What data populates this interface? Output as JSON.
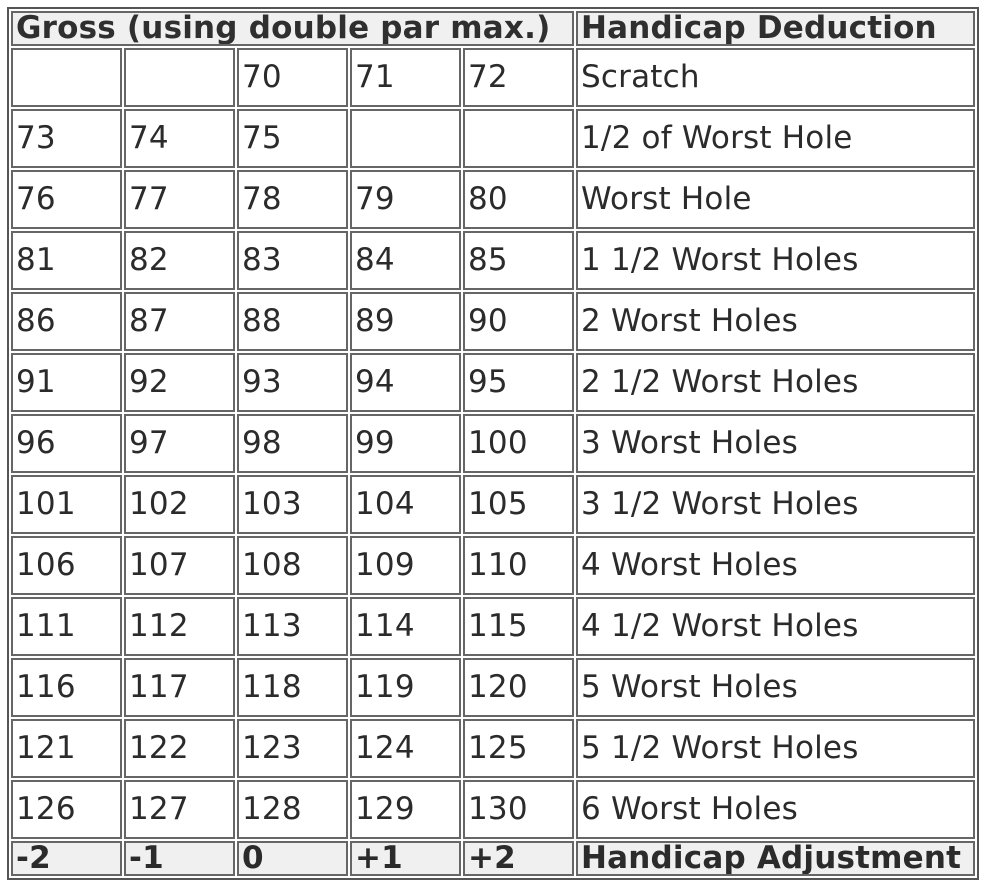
{
  "table": {
    "header": {
      "gross": "Gross (using double par max.)",
      "deduction": "Handicap Deduction"
    },
    "rows": [
      {
        "scores": [
          "",
          "",
          "70",
          "71",
          "72"
        ],
        "deduction": "Scratch"
      },
      {
        "scores": [
          "73",
          "74",
          "75",
          "",
          ""
        ],
        "deduction": "1/2 of Worst Hole"
      },
      {
        "scores": [
          "76",
          "77",
          "78",
          "79",
          "80"
        ],
        "deduction": "Worst Hole"
      },
      {
        "scores": [
          "81",
          "82",
          "83",
          "84",
          "85"
        ],
        "deduction": "1 1/2 Worst Holes"
      },
      {
        "scores": [
          "86",
          "87",
          "88",
          "89",
          "90"
        ],
        "deduction": "2 Worst Holes"
      },
      {
        "scores": [
          "91",
          "92",
          "93",
          "94",
          "95"
        ],
        "deduction": "2 1/2 Worst Holes"
      },
      {
        "scores": [
          "96",
          "97",
          "98",
          "99",
          "100"
        ],
        "deduction": "3 Worst Holes"
      },
      {
        "scores": [
          "101",
          "102",
          "103",
          "104",
          "105"
        ],
        "deduction": "3 1/2 Worst Holes"
      },
      {
        "scores": [
          "106",
          "107",
          "108",
          "109",
          "110"
        ],
        "deduction": "4 Worst Holes"
      },
      {
        "scores": [
          "111",
          "112",
          "113",
          "114",
          "115"
        ],
        "deduction": "4 1/2 Worst Holes"
      },
      {
        "scores": [
          "116",
          "117",
          "118",
          "119",
          "120"
        ],
        "deduction": "5 Worst Holes"
      },
      {
        "scores": [
          "121",
          "122",
          "123",
          "124",
          "125"
        ],
        "deduction": "5 1/2 Worst Holes"
      },
      {
        "scores": [
          "126",
          "127",
          "128",
          "129",
          "130"
        ],
        "deduction": "6 Worst Holes"
      }
    ],
    "footer": {
      "adjustments": [
        "-2",
        "-1",
        "0",
        "+1",
        "+2"
      ],
      "label": "Handicap Adjustment"
    }
  }
}
